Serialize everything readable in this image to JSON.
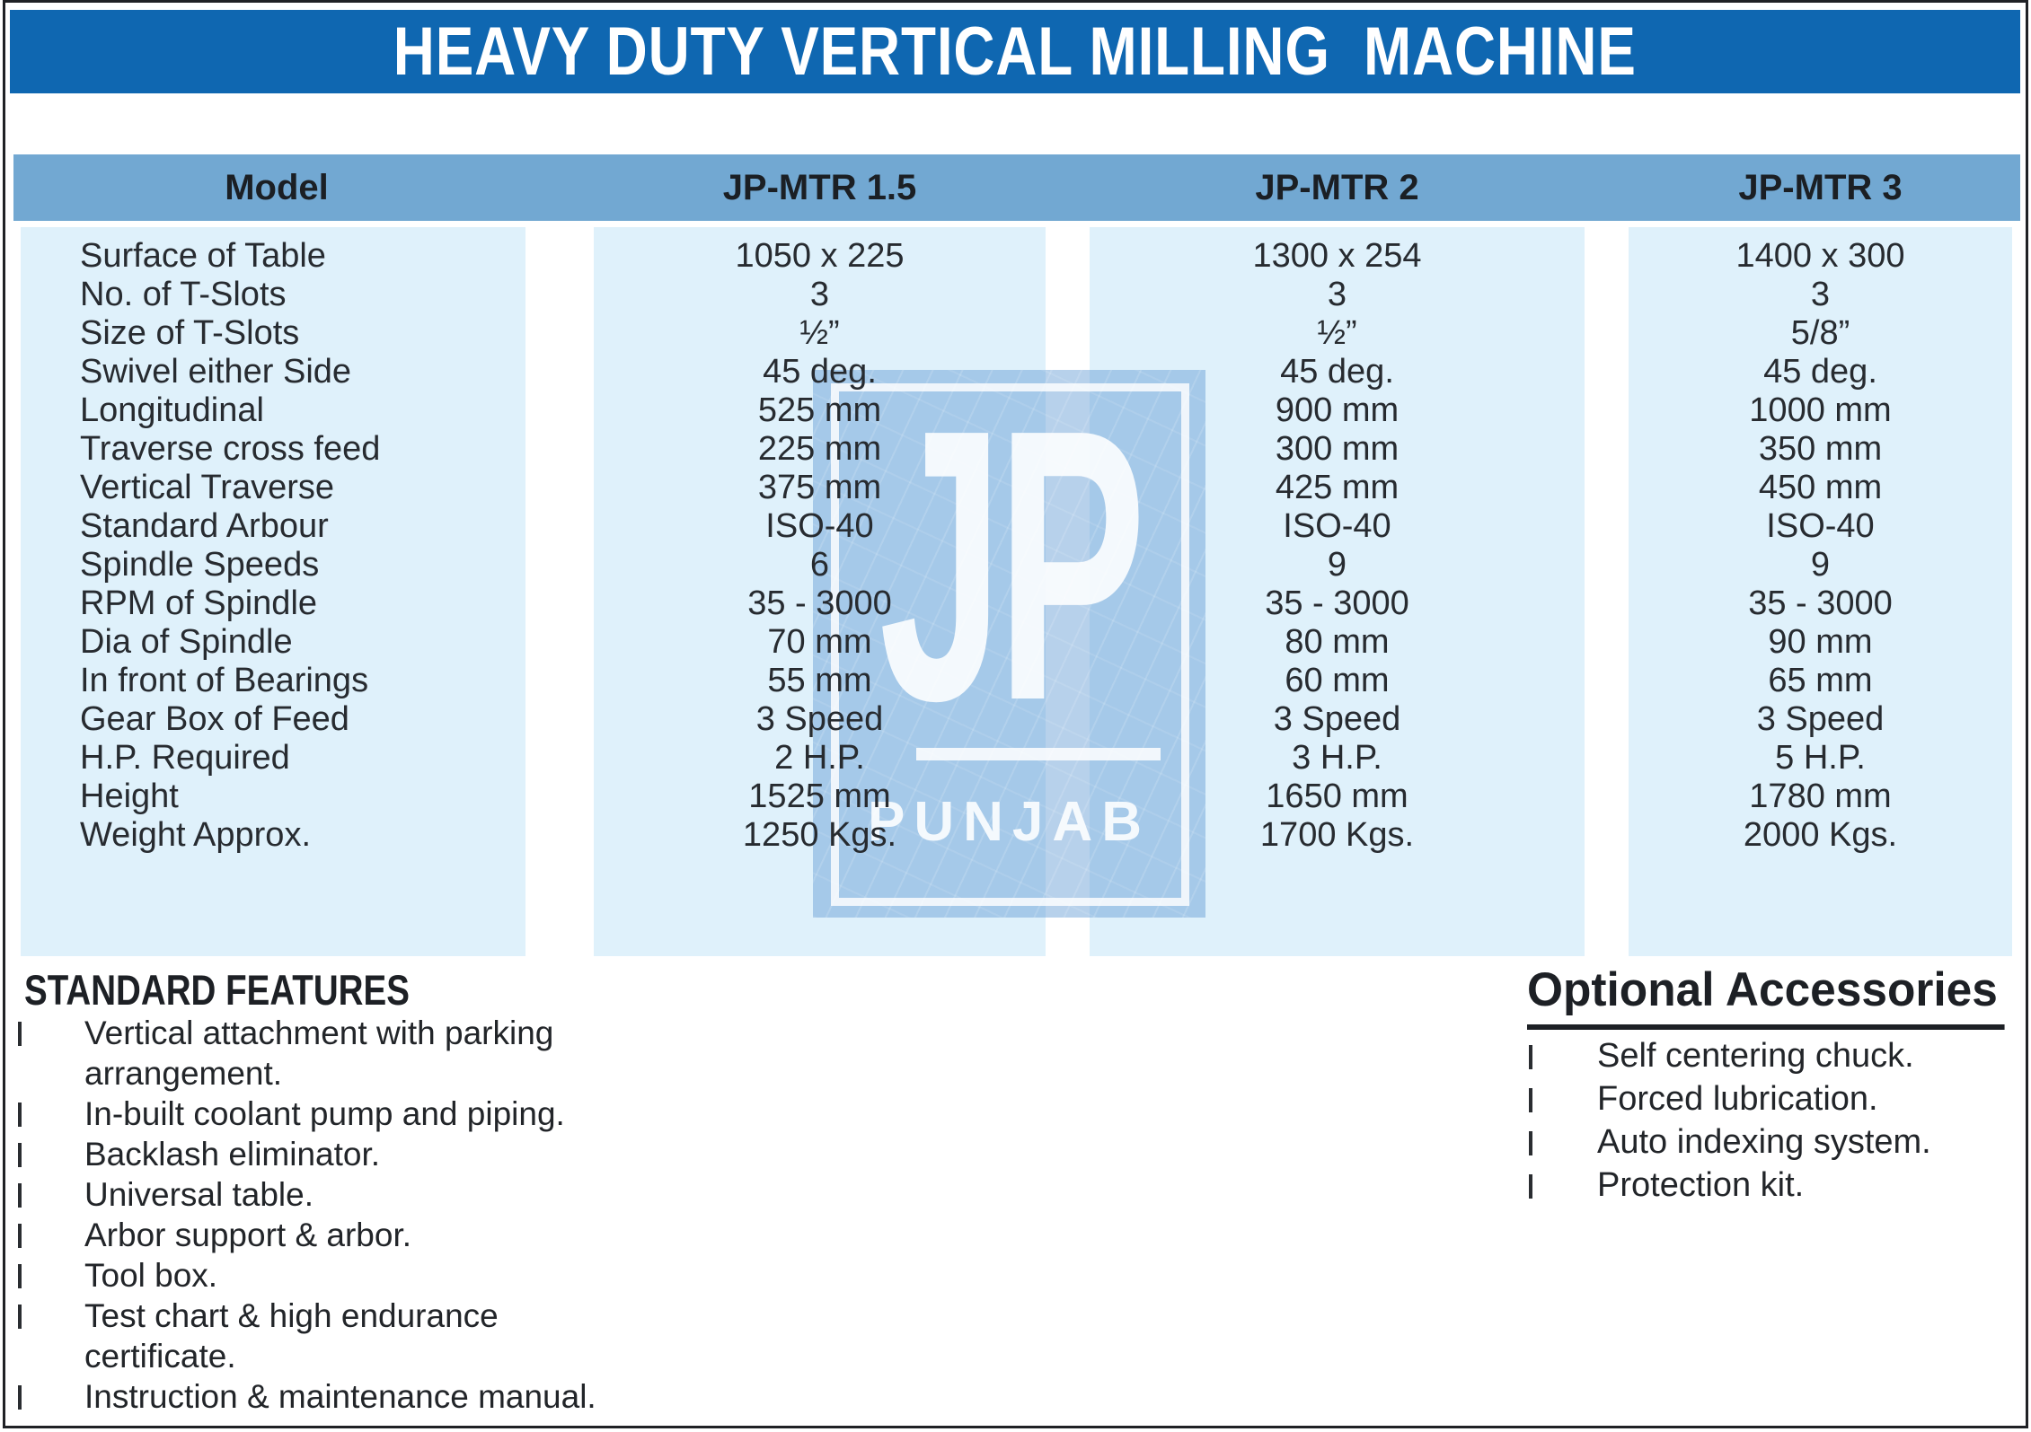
{
  "title": "HEAVY DUTY VERTICAL MILLING  MACHINE",
  "table": {
    "columns": [
      "Model",
      "JP-MTR 1.5",
      "JP-MTR 2",
      "JP-MTR 3"
    ],
    "rows": [
      {
        "label": "Surface of Table",
        "m15": "1050 x 225",
        "m2": "1300 x 254",
        "m3": "1400 x 300"
      },
      {
        "label": "No. of T-Slots",
        "m15": "3",
        "m2": "3",
        "m3": "3"
      },
      {
        "label": "Size of T-Slots",
        "m15": "½”",
        "m2": "½”",
        "m3": "5/8”"
      },
      {
        "label": "Swivel either Side",
        "m15": "45 deg.",
        "m2": "45 deg.",
        "m3": "45 deg."
      },
      {
        "label": "Longitudinal",
        "m15": "525 mm",
        "m2": "900 mm",
        "m3": "1000 mm"
      },
      {
        "label": "Traverse cross feed",
        "m15": "225 mm",
        "m2": "300 mm",
        "m3": "350 mm"
      },
      {
        "label": "Vertical Traverse",
        "m15": "375 mm",
        "m2": "425 mm",
        "m3": "450 mm"
      },
      {
        "label": "Standard Arbour",
        "m15": "ISO-40",
        "m2": "ISO-40",
        "m3": "ISO-40"
      },
      {
        "label": "Spindle Speeds",
        "m15": "6",
        "m2": "9",
        "m3": "9"
      },
      {
        "label": "RPM of Spindle",
        "m15": "35 - 3000",
        "m2": "35 - 3000",
        "m3": "35 - 3000"
      },
      {
        "label": "Dia of Spindle",
        "m15": "70 mm",
        "m2": "80 mm",
        "m3": "90 mm"
      },
      {
        "label": "In front of Bearings",
        "m15": "55 mm",
        "m2": "60 mm",
        "m3": "65 mm"
      },
      {
        "label": "Gear Box of Feed",
        "m15": "3 Speed",
        "m2": "3 Speed",
        "m3": "3 Speed"
      },
      {
        "label": "H.P. Required",
        "m15": "2 H.P.",
        "m2": "3 H.P.",
        "m3": "5 H.P."
      },
      {
        "label": "Height",
        "m15": "1525 mm",
        "m2": "1650 mm",
        "m3": "1780 mm"
      },
      {
        "label": "Weight Approx.",
        "m15": "1250 Kgs.",
        "m2": "1700 Kgs.",
        "m3": "2000 Kgs."
      }
    ]
  },
  "standard_features": {
    "heading": "STANDARD FEATURES",
    "items": [
      "Vertical attachment with parking arrangement.",
      "In-built coolant pump and piping.",
      "Backlash eliminator.",
      "Universal table.",
      "Arbor support & arbor.",
      "Tool box.",
      "Test chart & high endurance certificate.",
      "Instruction & maintenance manual."
    ]
  },
  "optional_accessories": {
    "heading": "Optional Accessories",
    "items": [
      "Self centering chuck.",
      "Forced lubrication.",
      "Auto indexing system.",
      "Protection kit."
    ]
  },
  "watermark": {
    "logo": "JP",
    "name": "PUNJAB"
  },
  "colors": {
    "title_bar": "#0f67b1",
    "header_bar": "#72a8d2",
    "column_band": "#dff1fb",
    "watermark_blue": "#b7d3ec",
    "text": "#272b30",
    "border": "#1f2125"
  }
}
